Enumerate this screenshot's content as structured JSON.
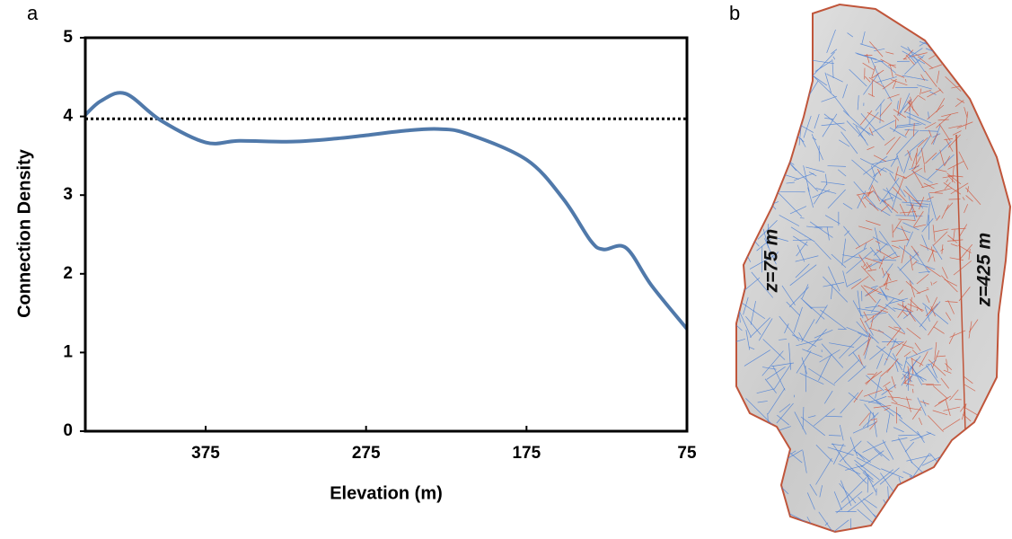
{
  "chart_data": {
    "type": "line",
    "panel_label": "a",
    "x_label": "Elevation (m)",
    "y_label": "Connection Density",
    "x": [
      450,
      440,
      425,
      403,
      375,
      354,
      321,
      293,
      275,
      250,
      230,
      212,
      175,
      152,
      135,
      127,
      113,
      97,
      75
    ],
    "series": [
      {
        "name": "Connection Density",
        "color": "#5079aa",
        "values": [
          4.02,
          4.2,
          4.29,
          3.95,
          3.67,
          3.69,
          3.68,
          3.72,
          3.76,
          3.82,
          3.84,
          3.78,
          3.45,
          2.95,
          2.42,
          2.31,
          2.33,
          1.85,
          1.3
        ]
      }
    ],
    "reference_line": 3.97,
    "xlim": [
      450,
      75
    ],
    "xticks": [
      375,
      275,
      175,
      75
    ],
    "ylim": [
      0,
      5
    ],
    "yticks": [
      0,
      1,
      2,
      3,
      4,
      5
    ]
  },
  "image": {
    "panel_label": "b",
    "labels": [
      "z=75 m",
      "z=425 m"
    ]
  }
}
